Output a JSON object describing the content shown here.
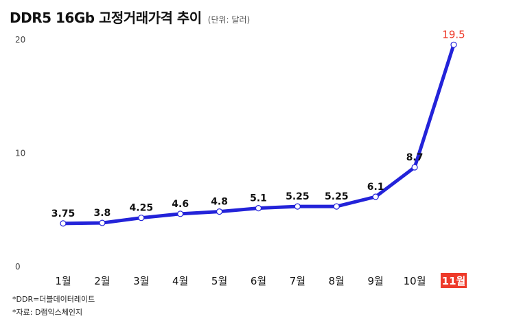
{
  "title": "DDR5 16Gb 고정거래가격 추이",
  "unit": "(단위: 달러)",
  "notes": [
    "*DDR=더블데이터레이트",
    "*자료: D램익스체인지"
  ],
  "colors": {
    "line": "#2323d9",
    "marker_fill": "#ffffff",
    "highlight": "#ee3a2a",
    "highlight_text": "#ffffff",
    "text": "#111111"
  },
  "chart_data": {
    "type": "line",
    "title": "DDR5 16Gb 고정거래가격 추이",
    "subtitle": "(단위: 달러)",
    "categories": [
      "1월",
      "2월",
      "3월",
      "4월",
      "5월",
      "6월",
      "7월",
      "8월",
      "9월",
      "10월",
      "11월"
    ],
    "values": [
      3.75,
      3.8,
      4.25,
      4.6,
      4.8,
      5.1,
      5.25,
      5.25,
      6.1,
      8.7,
      19.5
    ],
    "labels": [
      "3.75",
      "3.8",
      "4.25",
      "4.6",
      "4.8",
      "5.1",
      "5.25",
      "5.25",
      "6.1",
      "8.7",
      "19.5"
    ],
    "yticks": [
      0,
      10,
      20
    ],
    "ylim": [
      0,
      20
    ],
    "grid": false,
    "legend": "none",
    "highlight_index": 10
  }
}
